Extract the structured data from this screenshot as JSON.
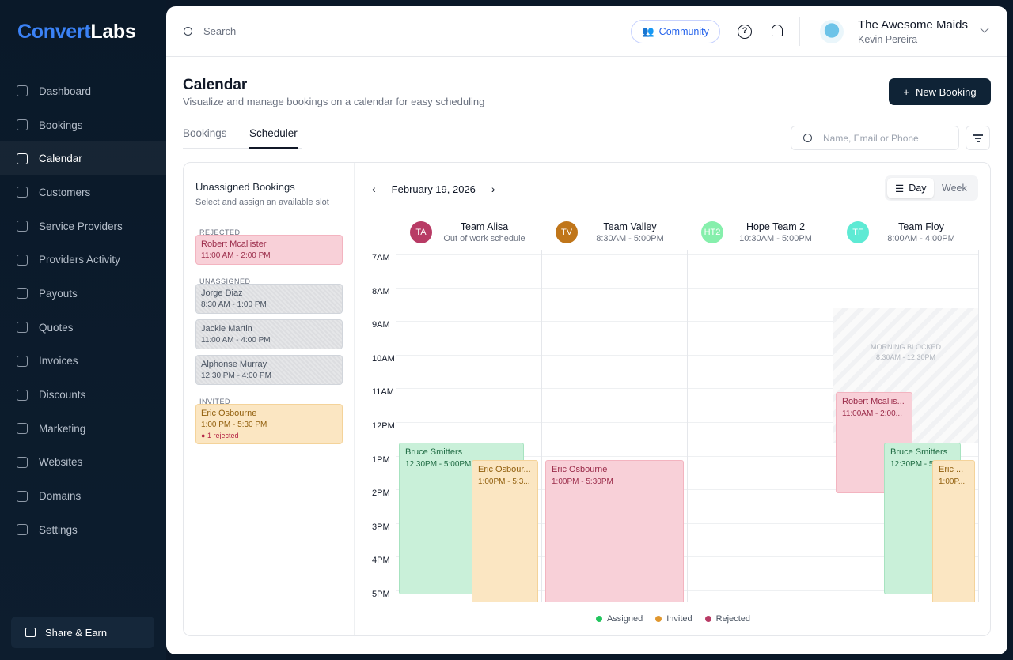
{
  "brand": {
    "part1": "Convert",
    "part2": "Labs"
  },
  "sidebar": {
    "items": [
      {
        "label": "Dashboard",
        "icon": "grid-icon"
      },
      {
        "label": "Bookings",
        "icon": "copy-icon"
      },
      {
        "label": "Calendar",
        "icon": "calendar-icon",
        "active": true
      },
      {
        "label": "Customers",
        "icon": "users-icon"
      },
      {
        "label": "Service Providers",
        "icon": "provider-icon"
      },
      {
        "label": "Providers Activity",
        "icon": "activity-icon"
      },
      {
        "label": "Payouts",
        "icon": "wallet-icon"
      },
      {
        "label": "Quotes",
        "icon": "quote-icon"
      },
      {
        "label": "Invoices",
        "icon": "invoice-icon"
      },
      {
        "label": "Discounts",
        "icon": "discount-icon"
      },
      {
        "label": "Marketing",
        "icon": "trend-icon"
      },
      {
        "label": "Websites",
        "icon": "laptop-icon"
      },
      {
        "label": "Domains",
        "icon": "globe-icon"
      },
      {
        "label": "Settings",
        "icon": "gear-icon"
      }
    ],
    "share": "Share & Earn"
  },
  "header": {
    "search_placeholder": "Search",
    "community": "Community",
    "help": "?",
    "org": "The Awesome Maids",
    "user": "Kevin Pereira"
  },
  "page": {
    "title": "Calendar",
    "subtitle": "Visualize and manage bookings on a calendar for easy scheduling",
    "new_booking": "New Booking",
    "tabs": [
      "Bookings",
      "Scheduler"
    ],
    "active_tab": "Scheduler",
    "filter_placeholder": "Name, Email or Phone"
  },
  "unassigned": {
    "title": "Unassigned Bookings",
    "subtitle": "Select and assign an available slot",
    "groups": {
      "rejected": "REJECTED",
      "unassigned": "UNASSIGNED",
      "invited": "INVITED"
    },
    "cards": [
      {
        "name": "Robert Mcallister",
        "time": "11:00 AM - 2:00 PM",
        "status": "rejected"
      },
      {
        "name": "Jorge Diaz",
        "time": "8:30 AM - 1:00 PM",
        "status": "unassigned"
      },
      {
        "name": "Jackie Martin",
        "time": "11:00 AM - 4:00 PM",
        "status": "unassigned"
      },
      {
        "name": "Alphonse Murray",
        "time": "12:30 PM - 4:00 PM",
        "status": "unassigned"
      },
      {
        "name": "Eric Osbourne",
        "time": "1:00 PM - 5:30 PM",
        "status": "invited",
        "note": "1 rejected"
      }
    ]
  },
  "calendar": {
    "date": "February 19, 2026",
    "view_options": [
      "Day",
      "Week"
    ],
    "active_view": "Day",
    "hours": [
      "7AM",
      "8AM",
      "9AM",
      "10AM",
      "11AM",
      "12PM",
      "1PM",
      "2PM",
      "3PM",
      "4PM",
      "5PM"
    ],
    "teams": [
      {
        "initials": "TA",
        "name": "Team Alisa",
        "hours": "Out of work schedule",
        "color": "#b83b65"
      },
      {
        "initials": "TV",
        "name": "Team Valley",
        "hours": "8:30AM - 5:00PM",
        "color": "#c0761a"
      },
      {
        "initials": "HT2",
        "name": "Hope Team 2",
        "hours": "10:30AM - 5:00PM",
        "color": "#86efac"
      },
      {
        "initials": "TF",
        "name": "Team Floy",
        "hours": "8:00AM - 4:00PM",
        "color": "#5eead4"
      }
    ],
    "blocked": [
      {
        "team": 3,
        "label": "MORNING BLOCKED",
        "time": "8:30AM - 12:30PM",
        "start": 8.5,
        "end": 12.5
      }
    ],
    "events": [
      {
        "team": 0,
        "name": "Bruce Smitters",
        "time": "12:30PM - 5:00PM",
        "start": 12.5,
        "end": 17,
        "status": "assigned"
      },
      {
        "team": 0,
        "name": "Eric Osbour...",
        "time": "1:00PM - 5:3...",
        "start": 13,
        "end": 17.5,
        "status": "invited"
      },
      {
        "team": 1,
        "name": "Eric Osbourne",
        "time": "1:00PM - 5:30PM",
        "start": 13,
        "end": 17.5,
        "status": "rejected"
      },
      {
        "team": 3,
        "name": "Robert Mcallis...",
        "time": "11:00AM - 2:00...",
        "start": 11,
        "end": 14,
        "status": "rejected"
      },
      {
        "team": 3,
        "name": "Bruce Smitters",
        "time": "12:30PM - 5...",
        "start": 12.5,
        "end": 17,
        "status": "assigned"
      },
      {
        "team": 3,
        "name": "Eric ...",
        "time": "1:00P...",
        "start": 13,
        "end": 17.5,
        "status": "invited"
      }
    ],
    "legend": [
      {
        "label": "Assigned",
        "color": "#22c55e"
      },
      {
        "label": "Invited",
        "color": "#e0972f"
      },
      {
        "label": "Rejected",
        "color": "#b83b65"
      }
    ]
  }
}
